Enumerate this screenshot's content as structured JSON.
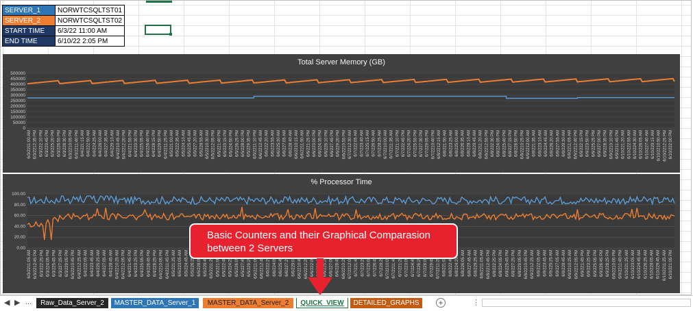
{
  "info_table": [
    {
      "key": "SERVER_1",
      "value": "NORWTCSQLTST01",
      "color": "#2E75B6"
    },
    {
      "key": "SERVER_2",
      "value": "NORWTCSQLTST02",
      "color": "#ED7D31"
    },
    {
      "key": "START TIME",
      "value": "6/3/22 11:00 AM",
      "color": "#1F3864"
    },
    {
      "key": "END TIME",
      "value": "6/10/22 2:05 PM",
      "color": "#1F3864"
    }
  ],
  "callout": {
    "line1": "Basic Counters and their Graphical Comparasion",
    "line2": "between 2 Servers",
    "color": "#E8212F"
  },
  "tabs": {
    "nav_first": "◀",
    "nav_last": "▶",
    "nav_more": "...",
    "items": [
      {
        "label": "Raw_Data_Server_2",
        "bg": "#262626",
        "fg": "#ffffff"
      },
      {
        "label": "MASTER_DATA_Server_1",
        "bg": "#2E75B6",
        "fg": "#ffffff"
      },
      {
        "label": "MASTER_DATA_Server_2",
        "bg": "#ED7D31",
        "fg": "#1f1f1f"
      },
      {
        "label": "QUICK_VIEW",
        "bg": "#ffffff",
        "fg": "#217346",
        "active": true
      },
      {
        "label": "DETAILED_GRAPHS",
        "bg": "#C55A11",
        "fg": "#ffffff"
      }
    ],
    "add_label": "+",
    "more_label": "⋮"
  },
  "chart_data": [
    {
      "type": "line",
      "title": "Total Server Memory (GB)",
      "ylim": [
        0,
        500000
      ],
      "yticks": [
        "500000",
        "450000",
        "400000",
        "350000",
        "300000",
        "250000",
        "200000",
        "150000",
        "100000",
        "50000",
        "0"
      ],
      "x_labels": [
        "6/3/2211:00 AM",
        "6/3/2212:35 PM",
        "6/3/222:10 PM",
        "6/3/223:45 PM",
        "6/3/225:20 PM",
        "6/3/226:55 PM",
        "6/3/228:30 PM",
        "6/3/2210:05 PM",
        "6/3/2211:40 PM",
        "6/4/221:15 AM",
        "6/4/222:50 AM",
        "6/4/224:25 AM",
        "6/4/226:00 AM",
        "6/4/227:35 AM",
        "6/4/229:10 AM",
        "6/4/2210:45 AM",
        "6/4/2212:20 PM",
        "6/4/221:55 PM",
        "6/4/223:30 PM",
        "6/4/225:05 PM",
        "6/4/226:40 PM",
        "6/4/228:15 PM",
        "6/4/229:50 PM",
        "6/4/2211:25 PM",
        "6/5/221:00 AM",
        "6/5/222:35 AM",
        "6/5/224:10 AM",
        "6/5/225:45 AM",
        "6/5/227:20 AM",
        "6/5/228:55 AM",
        "6/5/2210:30 AM",
        "6/5/2212:05 PM",
        "6/5/221:40 PM",
        "6/5/223:15 PM",
        "6/5/224:50 PM",
        "6/5/226:25 PM",
        "6/5/228:00 PM",
        "6/5/229:35 PM",
        "6/5/2211:10 PM",
        "6/6/2212:45 AM",
        "6/6/222:20 AM",
        "6/6/223:55 AM",
        "6/6/225:30 AM",
        "6/6/227:05 AM",
        "6/6/228:40 AM",
        "6/6/2210:15 AM",
        "6/6/2211:50 AM",
        "6/6/221:25 PM",
        "6/6/223:00 PM",
        "6/6/224:35 PM",
        "6/6/226:10 PM",
        "6/6/227:45 PM",
        "6/6/229:20 PM",
        "6/6/2210:55 PM",
        "6/7/2212:30 AM",
        "6/7/222:05 AM",
        "6/7/223:40 AM",
        "6/7/225:15 AM",
        "6/7/226:50 AM",
        "6/7/228:25 AM",
        "6/7/2210:00 AM",
        "6/7/2211:35 AM",
        "6/7/221:10 PM",
        "6/7/222:45 PM",
        "6/7/224:20 PM",
        "6/7/225:55 PM",
        "6/7/227:30 PM",
        "6/7/229:05 PM",
        "6/7/2210:40 PM",
        "6/8/2212:15 AM",
        "6/8/221:50 AM",
        "6/8/223:25 AM",
        "6/8/225:00 AM",
        "6/8/226:35 AM",
        "6/8/228:10 AM",
        "6/8/229:45 AM",
        "6/8/2211:20 AM",
        "6/8/2212:55 PM",
        "6/8/222:30 PM",
        "6/8/224:05 PM",
        "6/8/225:40 PM",
        "6/8/227:15 PM",
        "6/8/228:50 PM",
        "6/8/2210:25 PM",
        "6/9/2212:00 AM",
        "6/9/221:35 AM",
        "6/9/223:10 AM",
        "6/9/224:45 AM",
        "6/9/226:20 AM",
        "6/9/227:55 AM",
        "6/9/229:30 AM",
        "6/9/2211:05 AM",
        "6/9/2212:40 PM",
        "6/9/222:15 PM",
        "6/9/223:50 PM",
        "6/9/225:25 PM",
        "6/9/227:00 PM",
        "6/9/228:35 PM",
        "6/9/2210:10 PM",
        "6/9/2211:45 PM",
        "6/10/221:20 AM",
        "6/10/222:55 AM",
        "6/10/224:30 AM",
        "6/10/226:05 AM",
        "6/10/227:40 AM",
        "6/10/229:15 AM",
        "6/10/2210:50 AM",
        "6/10/2212:25 PM",
        "6/10/222:00 PM"
      ],
      "series": [
        {
          "name": "SERVER_2",
          "color": "#ED7D31",
          "base": 405000,
          "amplitude": 28000,
          "drift": 20000,
          "sawtooth_cycles": 20
        },
        {
          "name": "SERVER_1",
          "color": "#5B9BD5",
          "segments": [
            [
              0,
              275000
            ],
            [
              0.35,
              290000
            ],
            [
              0.74,
              272000
            ],
            [
              0.85,
              278000
            ],
            [
              1.0,
              280000
            ]
          ]
        }
      ]
    },
    {
      "type": "line",
      "title": "% Processor Time",
      "ylim": [
        0,
        100
      ],
      "yticks": [
        "100.00",
        "80.00",
        "60.00",
        "40.00",
        "20.00",
        "0.00"
      ],
      "x_labels": [
        "6/3/2211:05 AM",
        "6/3/2212:45 PM",
        "6/3/222:25 PM",
        "6/3/224:05 PM",
        "6/3/225:45 PM",
        "6/3/227:25 PM",
        "6/3/229:05 PM",
        "6/3/2210:45 PM",
        "6/4/2212:25 AM",
        "6/4/222:05 AM",
        "6/4/223:45 AM",
        "6/4/225:25 AM",
        "6/4/227:05 AM",
        "6/4/228:45 AM",
        "6/4/2210:25 AM",
        "6/4/2212:05 PM",
        "6/4/221:45 PM",
        "6/4/223:25 PM",
        "6/4/225:05 PM",
        "6/4/226:45 PM",
        "6/4/228:25 PM",
        "6/4/2210:05 PM",
        "6/4/2211:45 PM",
        "6/5/221:25 AM",
        "6/5/223:05 AM",
        "6/5/224:45 AM",
        "6/5/226:25 AM",
        "6/5/228:05 AM",
        "6/5/229:45 AM",
        "6/5/2211:25 AM",
        "6/5/221:05 PM",
        "6/5/222:45 PM",
        "6/5/224:25 PM",
        "6/5/226:05 PM",
        "6/5/227:45 PM",
        "6/5/229:25 PM",
        "6/5/2211:05 PM",
        "6/6/2212:45 AM",
        "6/6/222:25 AM",
        "6/6/224:05 AM",
        "6/6/225:45 AM",
        "6/6/227:25 AM",
        "6/6/229:05 AM",
        "6/6/2210:45 AM",
        "6/6/2212:25 PM",
        "6/6/222:05 PM",
        "6/6/223:45 PM",
        "6/6/225:25 PM",
        "6/6/227:05 PM",
        "6/6/228:45 PM",
        "6/6/2210:25 PM",
        "6/7/2212:05 AM",
        "6/7/221:45 AM",
        "6/7/223:25 AM",
        "6/7/225:05 AM",
        "6/7/226:45 AM",
        "6/7/228:25 AM",
        "6/7/2210:05 AM",
        "6/7/2211:45 AM",
        "6/7/221:25 PM",
        "6/7/223:05 PM",
        "6/7/224:45 PM",
        "6/7/226:25 PM",
        "6/7/228:05 PM",
        "6/7/229:45 PM",
        "6/7/2211:25 PM",
        "6/8/221:05 AM",
        "6/8/222:45 AM",
        "6/8/224:25 AM",
        "6/8/226:05 AM",
        "6/8/227:45 AM",
        "6/8/229:25 AM",
        "6/8/2211:05 AM",
        "6/8/2212:45 PM",
        "6/8/222:25 PM",
        "6/8/224:05 PM",
        "6/8/225:45 PM",
        "6/8/227:25 PM",
        "6/8/229:05 PM",
        "6/8/2210:45 PM",
        "6/9/2212:25 AM",
        "6/9/222:05 AM",
        "6/9/223:45 AM",
        "6/9/225:25 AM",
        "6/9/227:05 AM",
        "6/9/228:45 AM",
        "6/9/2210:25 AM",
        "6/9/2212:05 PM",
        "6/9/221:45 PM",
        "6/9/223:25 PM",
        "6/9/225:05 PM",
        "6/9/226:45 PM",
        "6/9/228:25 PM",
        "6/9/2210:05 PM",
        "6/9/2211:45 PM",
        "6/10/221:25 AM",
        "6/10/223:05 AM",
        "6/10/224:45 AM",
        "6/10/226:25 AM",
        "6/10/228:05 AM",
        "6/10/229:45 AM",
        "6/10/2211:25 AM",
        "6/10/221:05 PM"
      ],
      "series": [
        {
          "name": "SERVER_1",
          "color": "#5B9BD5",
          "mean": 88,
          "noise": 7
        },
        {
          "name": "SERVER_2",
          "color": "#ED7D31",
          "mean": 58,
          "noise": 6,
          "dip_min": 15
        }
      ]
    }
  ]
}
